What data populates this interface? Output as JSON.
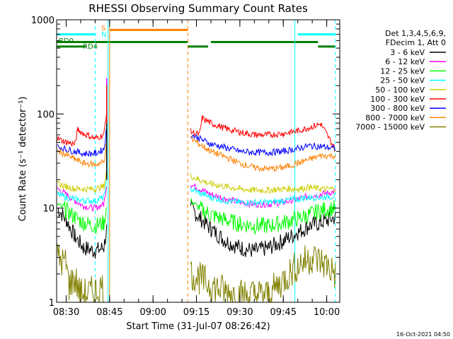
{
  "chart_data": {
    "type": "line",
    "title": "RHESSI Observing Summary Count Rates",
    "xlabel": "Start Time (31-Jul-07 08:26:42)",
    "ylabel": "Count Rate (s⁻¹ detector⁻¹)",
    "yscale": "log",
    "ylim": [
      1,
      1000
    ],
    "xlim": [
      "08:26:42",
      "10:04:30"
    ],
    "x_ticks": [
      "08:30",
      "08:45",
      "09:00",
      "09:15",
      "09:30",
      "09:45",
      "10:00"
    ],
    "y_ticks": [
      "1",
      "10",
      "100",
      "1000"
    ],
    "grid": false,
    "legend_placement": "right",
    "legend_header": [
      "Det 1,3,4,5,6,9,",
      "FDecim 1, Att 0"
    ],
    "timestamp": "16-Oct-2021 04:50",
    "series": [
      {
        "name": "3 - 6 keV",
        "color": "#000000",
        "points": [
          [
            "08:27",
            10
          ],
          [
            "08:30",
            7.5
          ],
          [
            "08:33",
            5
          ],
          [
            "08:36",
            3.8
          ],
          [
            "08:40",
            3.5
          ],
          [
            "08:43",
            3.8
          ],
          [
            "08:44",
            6
          ],
          [
            "08:51",
            null
          ],
          [
            "09:13",
            10
          ],
          [
            "09:16",
            8
          ],
          [
            "09:20",
            6
          ],
          [
            "09:25",
            4.5
          ],
          [
            "09:30",
            3.8
          ],
          [
            "09:35",
            3.5
          ],
          [
            "09:40",
            3.8
          ],
          [
            "09:45",
            4.5
          ],
          [
            "09:50",
            5.5
          ],
          [
            "09:54",
            6.5
          ],
          [
            "09:58",
            7
          ],
          [
            "10:03",
            8
          ]
        ]
      },
      {
        "name": "6 - 12 keV",
        "color": "#ff00ff",
        "points": [
          [
            "08:27",
            16
          ],
          [
            "08:30",
            14
          ],
          [
            "08:33",
            12
          ],
          [
            "08:36",
            10.5
          ],
          [
            "08:40",
            10
          ],
          [
            "08:43",
            11
          ],
          [
            "08:44",
            18
          ],
          [
            "08:51",
            null
          ],
          [
            "09:13",
            18
          ],
          [
            "09:16",
            16
          ],
          [
            "09:20",
            14
          ],
          [
            "09:25",
            12.5
          ],
          [
            "09:30",
            11.5
          ],
          [
            "09:35",
            11
          ],
          [
            "09:40",
            11
          ],
          [
            "09:45",
            11.5
          ],
          [
            "09:50",
            12.5
          ],
          [
            "09:54",
            13.5
          ],
          [
            "09:58",
            14
          ],
          [
            "10:03",
            15
          ]
        ]
      },
      {
        "name": "12 - 25 keV",
        "color": "#00ff00",
        "points": [
          [
            "08:27",
            11
          ],
          [
            "08:30",
            9.5
          ],
          [
            "08:33",
            8
          ],
          [
            "08:36",
            7
          ],
          [
            "08:40",
            6.5
          ],
          [
            "08:43",
            7
          ],
          [
            "08:44",
            10
          ],
          [
            "08:51",
            null
          ],
          [
            "09:13",
            12
          ],
          [
            "09:16",
            10
          ],
          [
            "09:20",
            8.5
          ],
          [
            "09:25",
            7.5
          ],
          [
            "09:30",
            6.8
          ],
          [
            "09:35",
            6.5
          ],
          [
            "09:40",
            6.5
          ],
          [
            "09:45",
            7
          ],
          [
            "09:50",
            7.8
          ],
          [
            "09:54",
            8.5
          ],
          [
            "09:58",
            9.5
          ],
          [
            "10:03",
            10
          ]
        ]
      },
      {
        "name": "25 - 50 keV",
        "color": "#00ffff",
        "points": [
          [
            "08:27",
            14
          ],
          [
            "08:30",
            13
          ],
          [
            "08:33",
            12.5
          ],
          [
            "08:36",
            12
          ],
          [
            "08:40",
            12
          ],
          [
            "08:43",
            13
          ],
          [
            "08:44",
            20
          ],
          [
            "08:51",
            null
          ],
          [
            "09:13",
            16
          ],
          [
            "09:16",
            14.5
          ],
          [
            "09:20",
            13
          ],
          [
            "09:25",
            12
          ],
          [
            "09:30",
            11.5
          ],
          [
            "09:35",
            11.5
          ],
          [
            "09:40",
            11.5
          ],
          [
            "09:45",
            12
          ],
          [
            "09:50",
            12.5
          ],
          [
            "09:54",
            13
          ],
          [
            "09:58",
            13
          ],
          [
            "10:03",
            13.5
          ]
        ]
      },
      {
        "name": "50 - 100 keV",
        "color": "#cccc00",
        "points": [
          [
            "08:27",
            18
          ],
          [
            "08:30",
            17
          ],
          [
            "08:33",
            16
          ],
          [
            "08:36",
            16
          ],
          [
            "08:40",
            16
          ],
          [
            "08:43",
            17
          ],
          [
            "08:44",
            25
          ],
          [
            "08:51",
            null
          ],
          [
            "09:13",
            22
          ],
          [
            "09:16",
            20
          ],
          [
            "09:20",
            18
          ],
          [
            "09:25",
            17
          ],
          [
            "09:30",
            16
          ],
          [
            "09:35",
            15.5
          ],
          [
            "09:40",
            15.5
          ],
          [
            "09:45",
            16
          ],
          [
            "09:50",
            16
          ],
          [
            "09:54",
            16.5
          ],
          [
            "09:58",
            16
          ],
          [
            "10:03",
            16
          ]
        ]
      },
      {
        "name": "100 - 300 keV",
        "color": "#ff0000",
        "points": [
          [
            "08:27",
            55
          ],
          [
            "08:30",
            50
          ],
          [
            "08:33",
            48
          ],
          [
            "08:34",
            68
          ],
          [
            "08:36",
            62
          ],
          [
            "08:40",
            55
          ],
          [
            "08:43",
            60
          ],
          [
            "08:44",
            110
          ],
          [
            "08:51",
            null
          ],
          [
            "09:13",
            65
          ],
          [
            "09:16",
            60
          ],
          [
            "09:17",
            90
          ],
          [
            "09:20",
            80
          ],
          [
            "09:25",
            70
          ],
          [
            "09:30",
            64
          ],
          [
            "09:35",
            60
          ],
          [
            "09:40",
            60
          ],
          [
            "09:45",
            62
          ],
          [
            "09:50",
            66
          ],
          [
            "09:54",
            72
          ],
          [
            "09:58",
            78
          ],
          [
            "10:03",
            42
          ]
        ]
      },
      {
        "name": "300 - 800 keV",
        "color": "#0000ff",
        "points": [
          [
            "08:27",
            45
          ],
          [
            "08:30",
            42
          ],
          [
            "08:33",
            40
          ],
          [
            "08:36",
            38
          ],
          [
            "08:40",
            38
          ],
          [
            "08:43",
            42
          ],
          [
            "08:44",
            70
          ],
          [
            "08:51",
            null
          ],
          [
            "09:13",
            60
          ],
          [
            "09:16",
            55
          ],
          [
            "09:20",
            48
          ],
          [
            "09:25",
            44
          ],
          [
            "09:30",
            40
          ],
          [
            "09:35",
            39
          ],
          [
            "09:40",
            39
          ],
          [
            "09:45",
            40
          ],
          [
            "09:50",
            43
          ],
          [
            "09:54",
            46
          ],
          [
            "09:58",
            45
          ],
          [
            "10:03",
            43
          ]
        ]
      },
      {
        "name": "800 - 7000 keV",
        "color": "#ff8000",
        "points": [
          [
            "08:27",
            40
          ],
          [
            "08:30",
            37
          ],
          [
            "08:33",
            33
          ],
          [
            "08:36",
            30
          ],
          [
            "08:40",
            29
          ],
          [
            "08:43",
            31
          ],
          [
            "08:44",
            50
          ],
          [
            "08:51",
            null
          ],
          [
            "09:13",
            55
          ],
          [
            "09:16",
            48
          ],
          [
            "09:20",
            40
          ],
          [
            "09:25",
            35
          ],
          [
            "09:30",
            30
          ],
          [
            "09:35",
            27
          ],
          [
            "09:40",
            26
          ],
          [
            "09:45",
            27
          ],
          [
            "09:50",
            30
          ],
          [
            "09:54",
            33
          ],
          [
            "09:58",
            36
          ],
          [
            "10:03",
            36
          ]
        ]
      },
      {
        "name": "7000 - 15000 keV",
        "color": "#808000",
        "points": [
          [
            "08:27",
            3
          ],
          [
            "08:30",
            2.5
          ],
          [
            "08:31",
            1.5
          ],
          [
            "08:33",
            1.8
          ],
          [
            "08:35",
            1.2
          ],
          [
            "08:40",
            1.3
          ],
          [
            "08:43",
            1.5
          ],
          [
            "08:51",
            null
          ],
          [
            "09:13",
            2
          ],
          [
            "09:16",
            1.8
          ],
          [
            "09:20",
            1.5
          ],
          [
            "09:25",
            1.3
          ],
          [
            "09:30",
            1.2
          ],
          [
            "09:40",
            1.2
          ],
          [
            "09:50",
            2.5
          ],
          [
            "09:55",
            3
          ],
          [
            "10:00",
            2.5
          ],
          [
            "10:03",
            2
          ]
        ]
      }
    ],
    "spikes": [
      {
        "time": "08:44",
        "color": "#ff00ff",
        "value": 240
      },
      {
        "time": "08:44",
        "color": "#ff0000",
        "value": 200
      },
      {
        "time": "08:44",
        "color": "#000000",
        "value": 80
      }
    ],
    "annotations": {
      "S_label": "S",
      "N_label": "N",
      "RD0_label": "RD0",
      "RD4_label": "RD4"
    },
    "flags": {
      "saa": {
        "color": "#00ffff",
        "value": 700,
        "intervals": [
          [
            "08:26:42",
            "08:40"
          ],
          [
            "09:50",
            "10:03"
          ]
        ]
      },
      "saa_orange": {
        "color": "#ff8000",
        "value": 780,
        "intervals": [
          [
            "08:45",
            "09:12"
          ]
        ]
      },
      "rd0": {
        "color": "#008000",
        "value": 580,
        "intervals": [
          [
            "08:26:42",
            "09:12"
          ],
          [
            "09:20",
            "09:57"
          ]
        ]
      },
      "rd4": {
        "color": "#008000",
        "value": 520,
        "intervals": [
          [
            "08:26:42",
            "08:37"
          ],
          [
            "09:12",
            "09:19"
          ],
          [
            "09:57",
            "10:03"
          ]
        ]
      }
    },
    "vlines": [
      {
        "time": "08:40",
        "color": "#00ffff",
        "style": "dashed"
      },
      {
        "time": "08:44:30",
        "color": "#00ffff",
        "style": "solid"
      },
      {
        "time": "08:45",
        "color": "#ff8000",
        "style": "solid"
      },
      {
        "time": "09:12",
        "color": "#ff8000",
        "style": "dashed"
      },
      {
        "time": "09:49",
        "color": "#00ffff",
        "style": "solid"
      },
      {
        "time": "10:03",
        "color": "#00ffff",
        "style": "dashed"
      }
    ]
  }
}
